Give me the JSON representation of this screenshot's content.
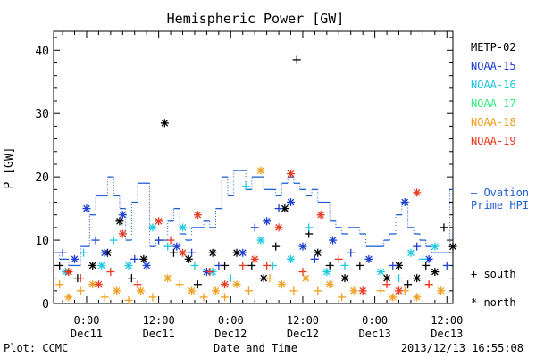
{
  "chart_data": {
    "type": "scatter",
    "title": "Hemispheric Power [GW]",
    "ylabel": "P [GW]",
    "xlabel": "Date and Time",
    "ylim": [
      0,
      43
    ],
    "xlim": [
      -5.5,
      61
    ],
    "yticks": [
      0,
      10,
      20,
      30,
      40
    ],
    "xticks": [
      {
        "x": 0,
        "line1": "0:00",
        "line2": "Dec11"
      },
      {
        "x": 12,
        "line1": "12:00",
        "line2": "Dec11"
      },
      {
        "x": 24,
        "line1": "0:00",
        "line2": "Dec12"
      },
      {
        "x": 36,
        "line1": "12:00",
        "line2": "Dec12"
      },
      {
        "x": 48,
        "line1": "0:00",
        "line2": "Dec13"
      },
      {
        "x": 60,
        "line1": "12:00",
        "line2": "Dec13"
      }
    ],
    "legend": [
      {
        "name": "METP-02",
        "color": "#000000"
      },
      {
        "name": "NOAA-15",
        "color": "#1f3fd0"
      },
      {
        "name": "NOAA-16",
        "color": "#1fc8e0"
      },
      {
        "name": "NOAA-17",
        "color": "#2ef07a"
      },
      {
        "name": "NOAA-18",
        "color": "#f0a020"
      },
      {
        "name": "NOAA-19",
        "color": "#e83a20"
      }
    ],
    "marker_legend": {
      "south": "+ south",
      "north": "* north"
    },
    "ovation_label": [
      "— Ovation",
      "Prime HPI"
    ],
    "ovation_color": "#1f5fd0",
    "series": [
      {
        "name": "METP-02",
        "color": "#000000",
        "points": [
          [
            -4.5,
            6,
            "s"
          ],
          [
            -3,
            5,
            "n"
          ],
          [
            -1.5,
            4,
            "s"
          ],
          [
            1,
            6,
            "n"
          ],
          [
            3.5,
            8,
            "n"
          ],
          [
            5.5,
            13,
            "n"
          ],
          [
            7.5,
            4,
            "s"
          ],
          [
            9.5,
            7,
            "n"
          ],
          [
            13,
            28.5,
            "n"
          ],
          [
            14.5,
            8,
            "s"
          ],
          [
            17,
            7,
            "n"
          ],
          [
            18.5,
            3,
            "s"
          ],
          [
            21,
            8,
            "n"
          ],
          [
            23,
            6,
            "s"
          ],
          [
            25,
            8,
            "n"
          ],
          [
            27.5,
            6,
            "s"
          ],
          [
            29.5,
            4,
            "n"
          ],
          [
            31.5,
            9,
            "s"
          ],
          [
            33,
            15,
            "n"
          ],
          [
            35,
            38.5,
            "s"
          ],
          [
            37,
            11,
            "s"
          ],
          [
            38.5,
            8,
            "n"
          ],
          [
            40.5,
            6,
            "s"
          ],
          [
            43,
            4,
            "n"
          ],
          [
            45.5,
            6,
            "s"
          ],
          [
            50,
            4,
            "n"
          ],
          [
            52,
            6,
            "n"
          ],
          [
            53.5,
            3,
            "s"
          ],
          [
            55,
            4,
            "n"
          ],
          [
            56.5,
            6,
            "s"
          ],
          [
            58,
            5,
            "n"
          ],
          [
            59.5,
            12,
            "s"
          ],
          [
            61,
            9,
            "n"
          ]
        ]
      },
      {
        "name": "NOAA-15",
        "color": "#1f3fd0",
        "points": [
          [
            -4,
            8,
            "s"
          ],
          [
            -2,
            7,
            "n"
          ],
          [
            0,
            15,
            "n"
          ],
          [
            1.5,
            10,
            "s"
          ],
          [
            3,
            8,
            "n"
          ],
          [
            6,
            14,
            "n"
          ],
          [
            8,
            7,
            "s"
          ],
          [
            10,
            6,
            "n"
          ],
          [
            12,
            10,
            "s"
          ],
          [
            15,
            9,
            "n"
          ],
          [
            17.5,
            8,
            "s"
          ],
          [
            20,
            5,
            "n"
          ],
          [
            22,
            6,
            "s"
          ],
          [
            26,
            8,
            "n"
          ],
          [
            28,
            12,
            "s"
          ],
          [
            30,
            13,
            "n"
          ],
          [
            32,
            15,
            "s"
          ],
          [
            34,
            16,
            "n"
          ],
          [
            36,
            9,
            "n"
          ],
          [
            38,
            7,
            "s"
          ],
          [
            41,
            10,
            "n"
          ],
          [
            44,
            8,
            "s"
          ],
          [
            47,
            7,
            "n"
          ],
          [
            51,
            6,
            "s"
          ],
          [
            53,
            16,
            "n"
          ],
          [
            55,
            9,
            "s"
          ],
          [
            57,
            7,
            "n"
          ],
          [
            60,
            6,
            "s"
          ]
        ]
      },
      {
        "name": "NOAA-16",
        "color": "#1fc8e0",
        "points": [
          [
            -3.5,
            5,
            "n"
          ],
          [
            -0.5,
            8,
            "s"
          ],
          [
            2.5,
            6,
            "n"
          ],
          [
            4.5,
            10,
            "s"
          ],
          [
            7,
            6,
            "n"
          ],
          [
            11,
            12,
            "n"
          ],
          [
            13.5,
            9,
            "s"
          ],
          [
            16,
            12,
            "n"
          ],
          [
            18,
            6,
            "s"
          ],
          [
            21,
            5,
            "n"
          ],
          [
            24,
            4,
            "s"
          ],
          [
            26.5,
            18.5,
            "s"
          ],
          [
            29,
            10,
            "n"
          ],
          [
            31,
            6,
            "s"
          ],
          [
            34,
            7,
            "n"
          ],
          [
            37,
            12,
            "s"
          ],
          [
            40,
            5,
            "n"
          ],
          [
            43,
            6,
            "s"
          ],
          [
            49,
            5,
            "n"
          ],
          [
            52,
            4,
            "s"
          ],
          [
            54,
            8,
            "n"
          ],
          [
            56,
            7,
            "s"
          ],
          [
            58,
            9,
            "n"
          ]
        ]
      },
      {
        "name": "NOAA-18",
        "color": "#f0a020",
        "points": [
          [
            -4.5,
            3,
            "s"
          ],
          [
            -3,
            1,
            "n"
          ],
          [
            -1,
            2,
            "s"
          ],
          [
            1,
            3,
            "n"
          ],
          [
            3,
            1,
            "s"
          ],
          [
            5,
            2,
            "n"
          ],
          [
            7,
            0.5,
            "s"
          ],
          [
            9,
            2,
            "n"
          ],
          [
            11,
            1,
            "s"
          ],
          [
            13.5,
            4,
            "n"
          ],
          [
            15.5,
            3,
            "s"
          ],
          [
            17.5,
            2,
            "n"
          ],
          [
            19.5,
            1,
            "s"
          ],
          [
            21.5,
            2,
            "n"
          ],
          [
            23,
            1,
            "s"
          ],
          [
            25,
            3,
            "n"
          ],
          [
            27,
            2,
            "s"
          ],
          [
            29,
            21,
            "n"
          ],
          [
            30.5,
            4,
            "s"
          ],
          [
            32.5,
            3,
            "n"
          ],
          [
            34.5,
            2,
            "s"
          ],
          [
            36.5,
            4,
            "n"
          ],
          [
            38.5,
            2,
            "s"
          ],
          [
            40.5,
            3,
            "n"
          ],
          [
            42.5,
            1,
            "s"
          ],
          [
            44.5,
            2,
            "n"
          ],
          [
            49,
            2,
            "s"
          ],
          [
            51,
            1,
            "n"
          ],
          [
            53,
            2,
            "s"
          ],
          [
            55,
            1,
            "n"
          ],
          [
            57,
            3,
            "s"
          ],
          [
            59,
            2,
            "n"
          ]
        ]
      },
      {
        "name": "NOAA-19",
        "color": "#e83a20",
        "points": [
          [
            -3,
            5,
            "n"
          ],
          [
            -1,
            4,
            "s"
          ],
          [
            2,
            3,
            "n"
          ],
          [
            4,
            5,
            "s"
          ],
          [
            6,
            11,
            "n"
          ],
          [
            8.5,
            3,
            "s"
          ],
          [
            12,
            13,
            "n"
          ],
          [
            14,
            10,
            "s"
          ],
          [
            16,
            8,
            "n"
          ],
          [
            18.5,
            14,
            "n"
          ],
          [
            20.5,
            5,
            "s"
          ],
          [
            23,
            3,
            "n"
          ],
          [
            26,
            6,
            "s"
          ],
          [
            28,
            7,
            "n"
          ],
          [
            30,
            6,
            "s"
          ],
          [
            32,
            12,
            "n"
          ],
          [
            34,
            20.5,
            "n"
          ],
          [
            36,
            5,
            "s"
          ],
          [
            39,
            14,
            "n"
          ],
          [
            42,
            7,
            "s"
          ],
          [
            46,
            2,
            "n"
          ],
          [
            50,
            3,
            "s"
          ],
          [
            52,
            2,
            "n"
          ],
          [
            55,
            17.5,
            "n"
          ],
          [
            57,
            3,
            "s"
          ]
        ]
      }
    ],
    "ovation_hpi": [
      [
        -5.5,
        8
      ],
      [
        -4.5,
        7
      ],
      [
        -3,
        6
      ],
      [
        -1,
        9
      ],
      [
        0.5,
        14
      ],
      [
        1.5,
        17
      ],
      [
        2.5,
        17
      ],
      [
        3.5,
        20
      ],
      [
        4.5,
        17
      ],
      [
        5.5,
        15
      ],
      [
        6.5,
        10
      ],
      [
        7.5,
        16
      ],
      [
        8.5,
        19
      ],
      [
        9.5,
        19
      ],
      [
        10.5,
        9
      ],
      [
        11.5,
        10
      ],
      [
        12.5,
        10
      ],
      [
        13.5,
        13
      ],
      [
        14.5,
        15
      ],
      [
        15.5,
        11
      ],
      [
        16.5,
        10
      ],
      [
        17.5,
        12
      ],
      [
        18.5,
        12
      ],
      [
        19.5,
        13
      ],
      [
        20.5,
        12
      ],
      [
        21.5,
        15
      ],
      [
        22.5,
        20
      ],
      [
        23.5,
        17
      ],
      [
        24.5,
        21
      ],
      [
        25.5,
        21
      ],
      [
        26.5,
        18
      ],
      [
        27.5,
        20
      ],
      [
        28.5,
        20
      ],
      [
        29.5,
        18
      ],
      [
        30.5,
        18
      ],
      [
        31.5,
        17
      ],
      [
        32.5,
        19
      ],
      [
        33.5,
        20
      ],
      [
        34.5,
        19
      ],
      [
        35.5,
        18
      ],
      [
        36.5,
        17
      ],
      [
        37.5,
        18
      ],
      [
        38.5,
        16
      ],
      [
        39.5,
        16
      ],
      [
        40.5,
        13
      ],
      [
        41.5,
        12
      ],
      [
        42.5,
        11
      ],
      [
        43.5,
        12
      ],
      [
        44.5,
        12
      ],
      [
        45.5,
        11
      ],
      [
        46.5,
        9
      ],
      [
        47.5,
        9
      ],
      [
        48.5,
        9
      ],
      [
        49.5,
        10
      ],
      [
        50.5,
        11
      ],
      [
        51.5,
        14
      ],
      [
        52.5,
        16
      ],
      [
        53.5,
        12
      ],
      [
        54.5,
        11
      ],
      [
        55.5,
        10
      ],
      [
        56.5,
        9
      ],
      [
        57.5,
        8
      ],
      [
        58.5,
        8
      ],
      [
        59.5,
        8
      ],
      [
        60.5,
        18
      ],
      [
        61,
        18
      ]
    ]
  },
  "footer": {
    "left": "Plot: CCMC",
    "right": "2013/12/13 16:55:08"
  }
}
